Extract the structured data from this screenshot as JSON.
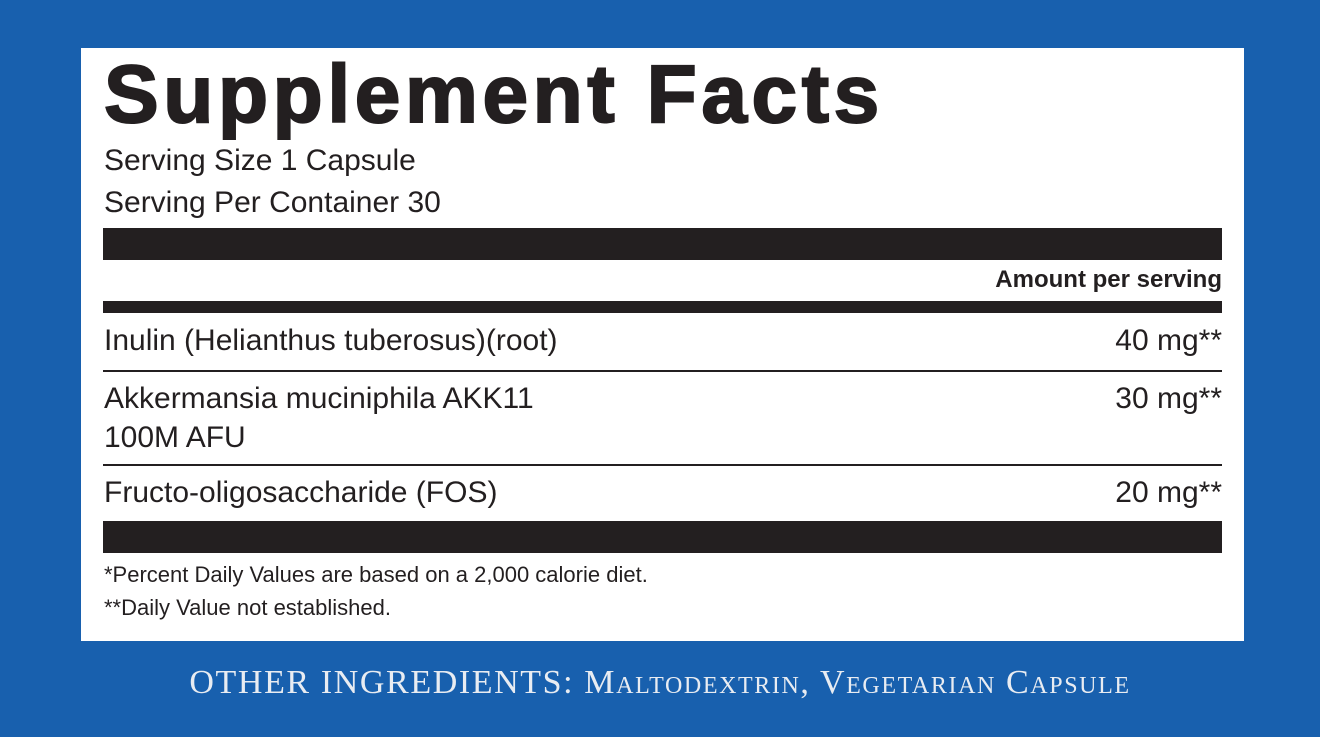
{
  "title": "Supplement Facts",
  "serving_size": "Serving Size 1 Capsule",
  "servings_per_container": "Serving Per Container 30",
  "amount_header": "Amount per serving",
  "ingredients": [
    {
      "name": "Inulin (Helianthus tuberosus)(root)",
      "amount": "40 mg**"
    },
    {
      "name": "Akkermansia muciniphila AKK11",
      "name_line2": "100M AFU",
      "amount": "30 mg**"
    },
    {
      "name": "Fructo-oligosaccharide (FOS)",
      "amount": "20 mg**"
    }
  ],
  "footnotes": [
    "*Percent Daily Values are based on a 2,000 calorie diet.",
    "**Daily Value not established."
  ],
  "other_ingredients": "OTHER INGREDIENTS: Maltodextrin, Vegetarian Capsule",
  "colors": {
    "background": "#1860ae",
    "panel": "#ffffff",
    "text": "#231f20"
  }
}
